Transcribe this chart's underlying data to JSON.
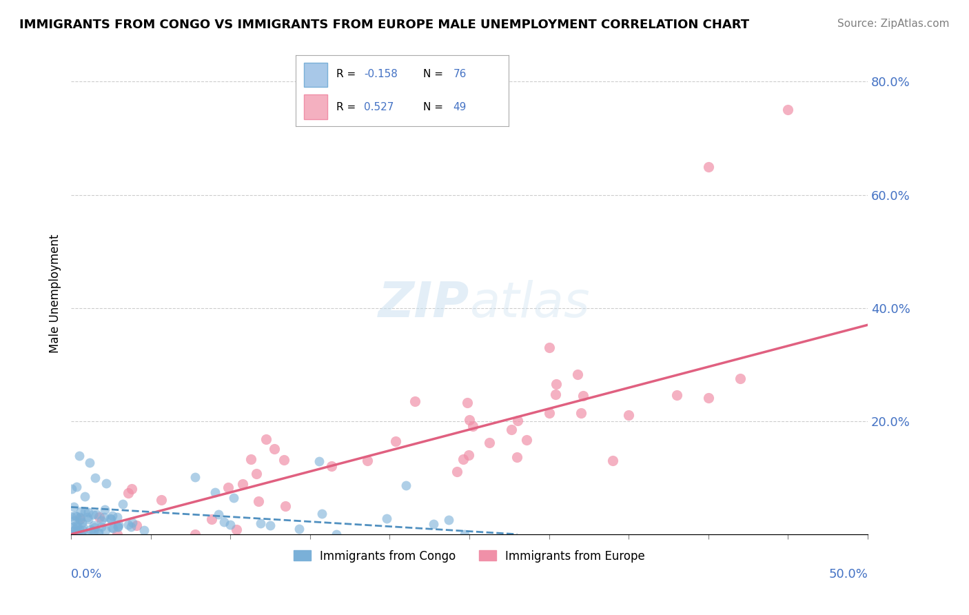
{
  "title": "IMMIGRANTS FROM CONGO VS IMMIGRANTS FROM EUROPE MALE UNEMPLOYMENT CORRELATION CHART",
  "source": "Source: ZipAtlas.com",
  "ylabel": "Male Unemployment",
  "yticks": [
    0.0,
    0.2,
    0.4,
    0.6,
    0.8
  ],
  "ytick_labels": [
    "",
    "20.0%",
    "40.0%",
    "60.0%",
    "80.0%"
  ],
  "xlim": [
    0.0,
    0.5
  ],
  "ylim": [
    0.0,
    0.85
  ],
  "congo_color": "#7ab0d8",
  "europe_color": "#f090a8",
  "trendline_congo_color": "#5090c0",
  "trendline_europe_color": "#e06080",
  "background_color": "#ffffff",
  "legend_congo_color": "#a8c8e8",
  "legend_europe_color": "#f4b0c0",
  "R_congo": "-0.158",
  "N_congo": "76",
  "R_europe": "0.527",
  "N_europe": "49",
  "blue_label_color": "#4472c4",
  "grid_color": "#cccccc",
  "congo_trendline_x": [
    0.0,
    0.28
  ],
  "congo_trendline_y": [
    0.048,
    0.0
  ],
  "europe_trendline_x": [
    0.0,
    0.5
  ],
  "europe_trendline_y": [
    0.0,
    0.37
  ]
}
